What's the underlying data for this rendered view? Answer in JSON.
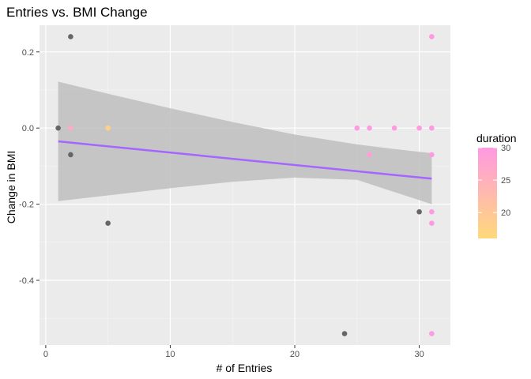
{
  "chart_data": {
    "type": "scatter",
    "title": "Entries vs. BMI Change",
    "xlabel": "# of Entries",
    "ylabel": "Change in BMI",
    "xlim": [
      -0.5,
      32.5
    ],
    "ylim": [
      -0.57,
      0.27
    ],
    "x_ticks": [
      0,
      10,
      20,
      30
    ],
    "x_tick_labels": [
      "0",
      "10",
      "20",
      "30"
    ],
    "y_ticks": [
      0.2,
      0.0,
      -0.2,
      -0.4
    ],
    "y_tick_labels": [
      "0.2",
      "0.0",
      "-0.2",
      "-0.4"
    ],
    "x_minor_ticks": [
      5,
      15,
      25
    ],
    "y_minor_ticks": [
      0.1,
      -0.1,
      -0.3,
      -0.5
    ],
    "grid": true,
    "legend": {
      "title": "duration",
      "placement": "right",
      "range": [
        16,
        30
      ],
      "ticks": [
        20,
        25,
        30
      ],
      "tick_labels": [
        "20",
        "25",
        "30"
      ],
      "color_low": "#FFD97A",
      "color_high": "#FF99E2"
    },
    "missing_color": "#666666",
    "points": [
      {
        "x": 1,
        "y": 0.0,
        "duration": null
      },
      {
        "x": 2,
        "y": 0.24,
        "duration": null
      },
      {
        "x": 2,
        "y": 0.0,
        "duration": 26
      },
      {
        "x": 2,
        "y": -0.07,
        "duration": null
      },
      {
        "x": 5,
        "y": 0.0,
        "duration": 18
      },
      {
        "x": 5,
        "y": -0.25,
        "duration": null
      },
      {
        "x": 24,
        "y": -0.54,
        "duration": null
      },
      {
        "x": 25,
        "y": 0.0,
        "duration": 30
      },
      {
        "x": 26,
        "y": 0.0,
        "duration": 30
      },
      {
        "x": 26,
        "y": -0.07,
        "duration": 29
      },
      {
        "x": 28,
        "y": 0.0,
        "duration": 30
      },
      {
        "x": 30,
        "y": 0.0,
        "duration": 30
      },
      {
        "x": 30,
        "y": -0.22,
        "duration": null
      },
      {
        "x": 31,
        "y": 0.24,
        "duration": 30
      },
      {
        "x": 31,
        "y": 0.0,
        "duration": 30
      },
      {
        "x": 31,
        "y": -0.07,
        "duration": 30
      },
      {
        "x": 31,
        "y": -0.22,
        "duration": 30
      },
      {
        "x": 31,
        "y": -0.25,
        "duration": 30
      },
      {
        "x": 31,
        "y": -0.54,
        "duration": 30
      }
    ],
    "trend_line": {
      "x": [
        1,
        31
      ],
      "y": [
        -0.035,
        -0.133
      ],
      "color": "#A566FF"
    },
    "confidence_band": {
      "x": [
        1,
        5,
        10,
        15,
        20,
        25,
        28,
        31
      ],
      "upper": [
        0.122,
        0.09,
        0.052,
        0.016,
        -0.017,
        -0.043,
        -0.055,
        -0.066
      ],
      "lower": [
        -0.192,
        -0.177,
        -0.158,
        -0.141,
        -0.13,
        -0.136,
        -0.168,
        -0.2
      ],
      "color": "#BEBEBE"
    }
  }
}
